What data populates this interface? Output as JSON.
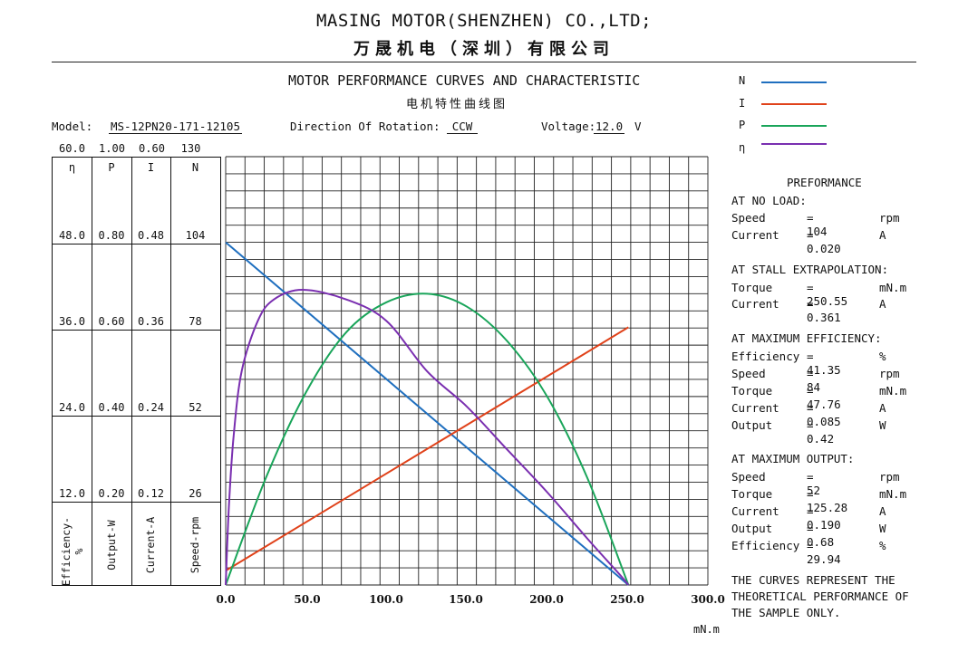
{
  "header": {
    "company_en": "MASING MOTOR(SHENZHEN) CO.,LTD;",
    "company_cn": "万晟机电（深圳）有限公司"
  },
  "title": {
    "en": "MOTOR PERFORMANCE CURVES AND CHARACTERISTIC",
    "cn": "电机特性曲线图"
  },
  "info": {
    "model_label": "Model:",
    "model_value": "MS-12PN20-171-12105",
    "rotation_label": "Direction Of Rotation:",
    "rotation_value": "CCW",
    "voltage_label": "Voltage:",
    "voltage_value": "12.0",
    "voltage_unit": "V"
  },
  "side_table": {
    "headers": [
      "η",
      "P",
      "I",
      "N"
    ],
    "max_values": [
      "60.0",
      "1.00",
      "0.60",
      "130"
    ],
    "rows": [
      [
        "48.0",
        "0.80",
        "0.48",
        "104"
      ],
      [
        "36.0",
        "0.60",
        "0.36",
        "78"
      ],
      [
        "24.0",
        "0.40",
        "0.24",
        "52"
      ],
      [
        "12.0",
        "0.20",
        "0.12",
        "26"
      ]
    ],
    "axis_titles": [
      "Efficiency-%",
      "Output-W",
      "Current-A",
      "Speed-rpm"
    ]
  },
  "legend": [
    {
      "symbol": "N",
      "color": "#1f6fbf"
    },
    {
      "symbol": "I",
      "color": "#e0421a"
    },
    {
      "symbol": "P",
      "color": "#1aa55a"
    },
    {
      "symbol": "η",
      "color": "#7a2fb0"
    }
  ],
  "performance": {
    "title": "PREFORMANCE",
    "sections": [
      {
        "heading": "AT NO LOAD:",
        "items": [
          {
            "label": "Speed",
            "value": "= 104",
            "unit": "rpm"
          },
          {
            "label": "Current",
            "value": "= 0.020",
            "unit": "A"
          }
        ]
      },
      {
        "heading": "AT STALL EXTRAPOLATION:",
        "items": [
          {
            "label": "Torque",
            "value": "= 250.55",
            "unit": "mN.m"
          },
          {
            "label": "Current",
            "value": "= 0.361",
            "unit": "A"
          }
        ]
      },
      {
        "heading": "AT MAXIMUM EFFICIENCY:",
        "items": [
          {
            "label": "Efficiency",
            "value": "= 41.35",
            "unit": "%"
          },
          {
            "label": "Speed",
            "value": "= 84",
            "unit": "rpm"
          },
          {
            "label": "Torque",
            "value": "= 47.76",
            "unit": "mN.m"
          },
          {
            "label": "Current",
            "value": "= 0.085",
            "unit": "A"
          },
          {
            "label": "Output",
            "value": "= 0.42",
            "unit": "W"
          }
        ]
      },
      {
        "heading": "AT MAXIMUM OUTPUT:",
        "items": [
          {
            "label": "Speed",
            "value": "= 52",
            "unit": "rpm"
          },
          {
            "label": "Torque",
            "value": "= 125.28",
            "unit": "mN.m"
          },
          {
            "label": "Current",
            "value": "= 0.190",
            "unit": "A"
          },
          {
            "label": "Output",
            "value": "= 0.68",
            "unit": "W"
          },
          {
            "label": "Efficiency",
            "value": "= 29.94",
            "unit": "%"
          }
        ]
      }
    ],
    "note": [
      "THE CURVES REPRESENT THE",
      "THEORETICAL PERFORMANCE OF",
      "THE SAMPLE ONLY."
    ]
  },
  "chart_data": {
    "type": "line",
    "x_ticks": [
      "0.0",
      "50.0",
      "100.0",
      "150.0",
      "200.0",
      "250.0",
      "300.0"
    ],
    "xlabel": "mN.m",
    "xlim": [
      0,
      300
    ],
    "grid": true,
    "grid_columns": 25,
    "grid_rows": 25,
    "legend_position": "top-right",
    "series": [
      {
        "name": "N",
        "axis": "Speed-rpm",
        "ylim": [
          0,
          130
        ],
        "color": "#1f6fbf",
        "x": [
          0,
          250.55
        ],
        "y": [
          104,
          0
        ]
      },
      {
        "name": "I",
        "axis": "Current-A",
        "ylim": [
          0,
          0.6
        ],
        "color": "#e0421a",
        "x": [
          0,
          250.55
        ],
        "y": [
          0.02,
          0.361
        ]
      },
      {
        "name": "P",
        "axis": "Output-W",
        "ylim": [
          0,
          1.0
        ],
        "color": "#1aa55a",
        "x": [
          0,
          25,
          50,
          75,
          100,
          125.28,
          150,
          175,
          200,
          225,
          250.55
        ],
        "y": [
          0,
          0.25,
          0.45,
          0.59,
          0.66,
          0.68,
          0.65,
          0.57,
          0.44,
          0.25,
          0
        ]
      },
      {
        "name": "η",
        "axis": "Efficiency-%",
        "ylim": [
          0,
          60
        ],
        "color": "#7a2fb0",
        "x": [
          0,
          2,
          5,
          10,
          20,
          30,
          47.76,
          75,
          100,
          125.28,
          150,
          175,
          200,
          225,
          245,
          250.55
        ],
        "y": [
          0,
          11,
          21,
          30,
          37,
          40,
          41.35,
          40,
          37,
          29.94,
          25,
          19,
          13,
          6.5,
          1.5,
          0
        ]
      }
    ]
  }
}
